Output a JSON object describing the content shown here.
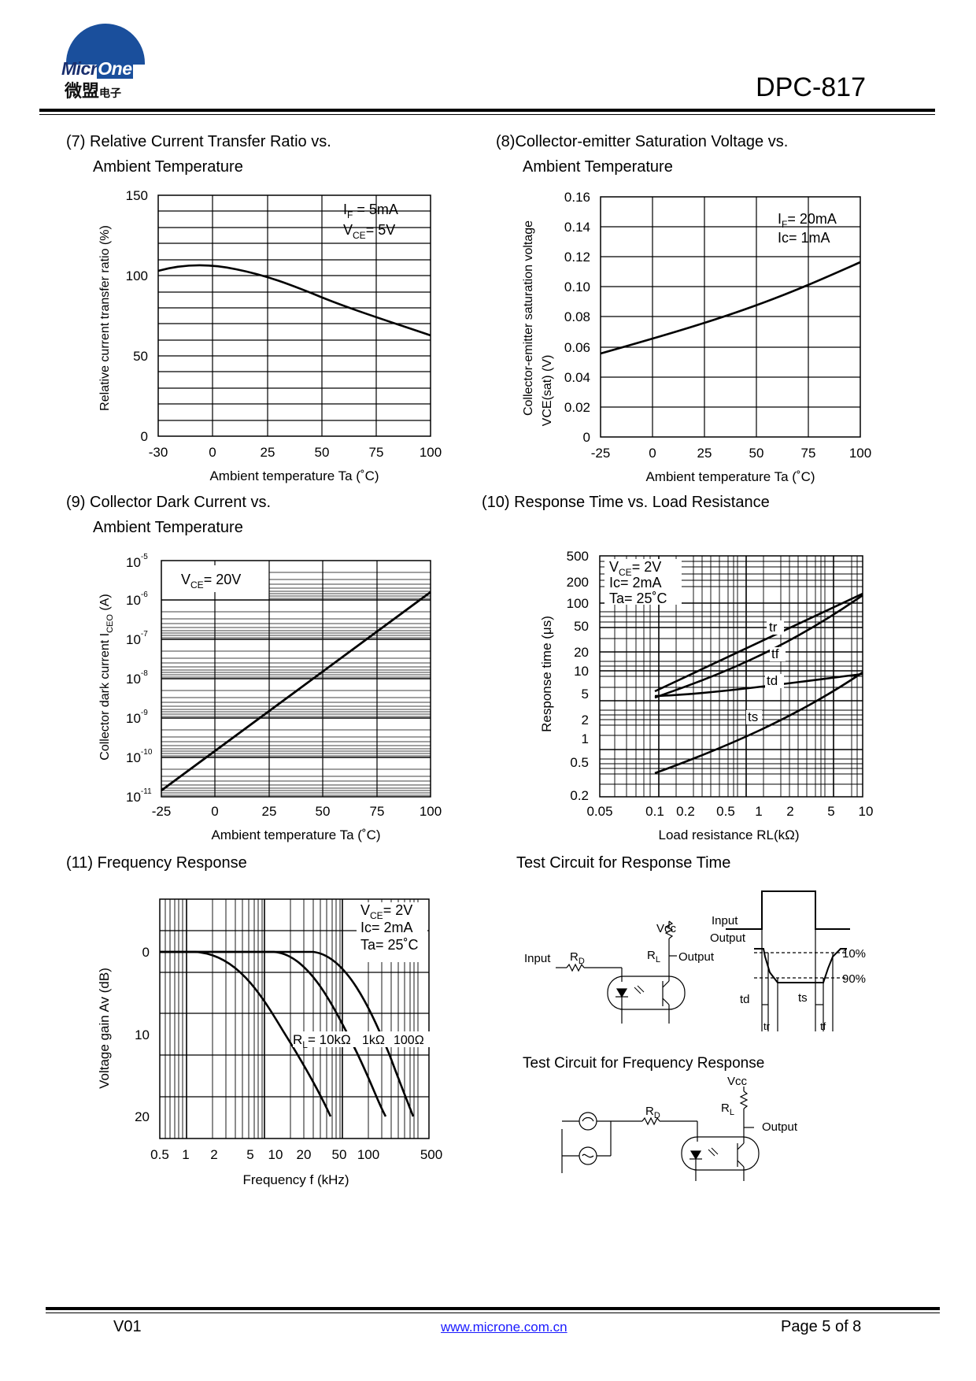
{
  "header": {
    "logo_text_a": "Micr",
    "logo_text_b": "One",
    "logo_cn": "微盟",
    "logo_cn_small": "电子",
    "part_number": "DPC-817"
  },
  "charts": {
    "c7": {
      "title_line1": "(7) Relative Current Transfer Ratio vs.",
      "title_line2": "Ambient Temperature",
      "ylabel": "Relative current transfer ratio (%)",
      "xlabel": "Ambient temperature Ta (˚C)",
      "legend1": "I",
      "legend1_sub": "F",
      "legend1_rest": " = 5mA",
      "legend2": "V",
      "legend2_sub": "CE",
      "legend2_rest": "= 5V",
      "xticks": [
        "-30",
        "0",
        "25",
        "50",
        "75",
        "100"
      ],
      "yticks": [
        "0",
        "50",
        "100",
        "150"
      ]
    },
    "c8": {
      "title_line1": "(8)Collector-emitter Saturation Voltage vs.",
      "title_line2": "Ambient Temperature",
      "ylabel1": "Collector-emitter saturation voltage",
      "ylabel2": "VCE(sat) (V)",
      "xlabel": "Ambient temperature Ta (˚C)",
      "legend1": "I",
      "legend1_sub": "F",
      "legend1_rest": "= 20mA",
      "legend2": "Ic= 1mA",
      "xticks": [
        "-25",
        "0",
        "25",
        "50",
        "75",
        "100"
      ],
      "yticks": [
        "0",
        "0.02",
        "0.04",
        "0.06",
        "0.08",
        "0.10",
        "0.12",
        "0.14",
        "0.16"
      ]
    },
    "c9": {
      "title_line1": "(9) Collector Dark Current vs.",
      "title_line2": "Ambient Temperature",
      "ylabel": "Collector dark current I",
      "ylabel_sub": "CEO",
      "ylabel_rest": " (A)",
      "xlabel": "Ambient temperature Ta (˚C)",
      "legend1": "V",
      "legend1_sub": "CE",
      "legend1_rest": "= 20V",
      "xticks": [
        "-25",
        "0",
        "25",
        "50",
        "75",
        "100"
      ],
      "ytick_base": "10",
      "yticks_exp": [
        "-11",
        "-10",
        "-9",
        "-8",
        "-7",
        "-6",
        "-5"
      ]
    },
    "c10": {
      "title": "(10) Response Time vs. Load Resistance",
      "ylabel": "Response time (μs)",
      "xlabel": "Load resistance RL(kΩ)",
      "legend1": "V",
      "legend1_sub": "CE",
      "legend1_rest": "= 2V",
      "legend2": "Ic= 2mA",
      "legend3": "Ta= 25˚C",
      "xticks": [
        "0.05",
        "0.1",
        "0.2",
        "0.5",
        "1",
        "2",
        "5",
        "10"
      ],
      "yticks": [
        "0.2",
        "0.5",
        "1",
        "2",
        "5",
        "10",
        "20",
        "50",
        "100",
        "200",
        "500"
      ],
      "curves": [
        "tr",
        "tf",
        "td",
        "ts"
      ]
    },
    "c11": {
      "title": "(11) Frequency Response",
      "ylabel": "Voltage gain Av (dB)",
      "xlabel": "Frequency f (kHz)",
      "legend1": "V",
      "legend1_sub": "CE",
      "legend1_rest": "= 2V",
      "legend2": "Ic= 2mA",
      "legend3": "Ta= 25˚C",
      "curve_label": "R",
      "curve_label_sub": "L",
      "curve_label_rest": "= 10kΩ",
      "curve_label_2": "1kΩ",
      "curve_label_3": "100Ω",
      "xticks": [
        "0.5",
        "1",
        "2",
        "5",
        "10",
        "20",
        "50",
        "100",
        "500"
      ],
      "yticks": [
        "0",
        "10",
        "20"
      ]
    }
  },
  "circuits": {
    "rt_title": "Test Circuit for Response Time",
    "fr_title": "Test Circuit for Frequency Response",
    "vcc": "Vcc",
    "input": "Input",
    "output": "Output",
    "rd": "R",
    "rd_sub": "D",
    "rl": "R",
    "rl_sub": "L",
    "pct10": "10%",
    "pct90": "90%",
    "td": "td",
    "ts": "ts",
    "tr": "tr",
    "tf": "tf"
  },
  "footer": {
    "version": "V01",
    "url": "www.microne.com.cn",
    "page": "Page 5 of 8"
  }
}
